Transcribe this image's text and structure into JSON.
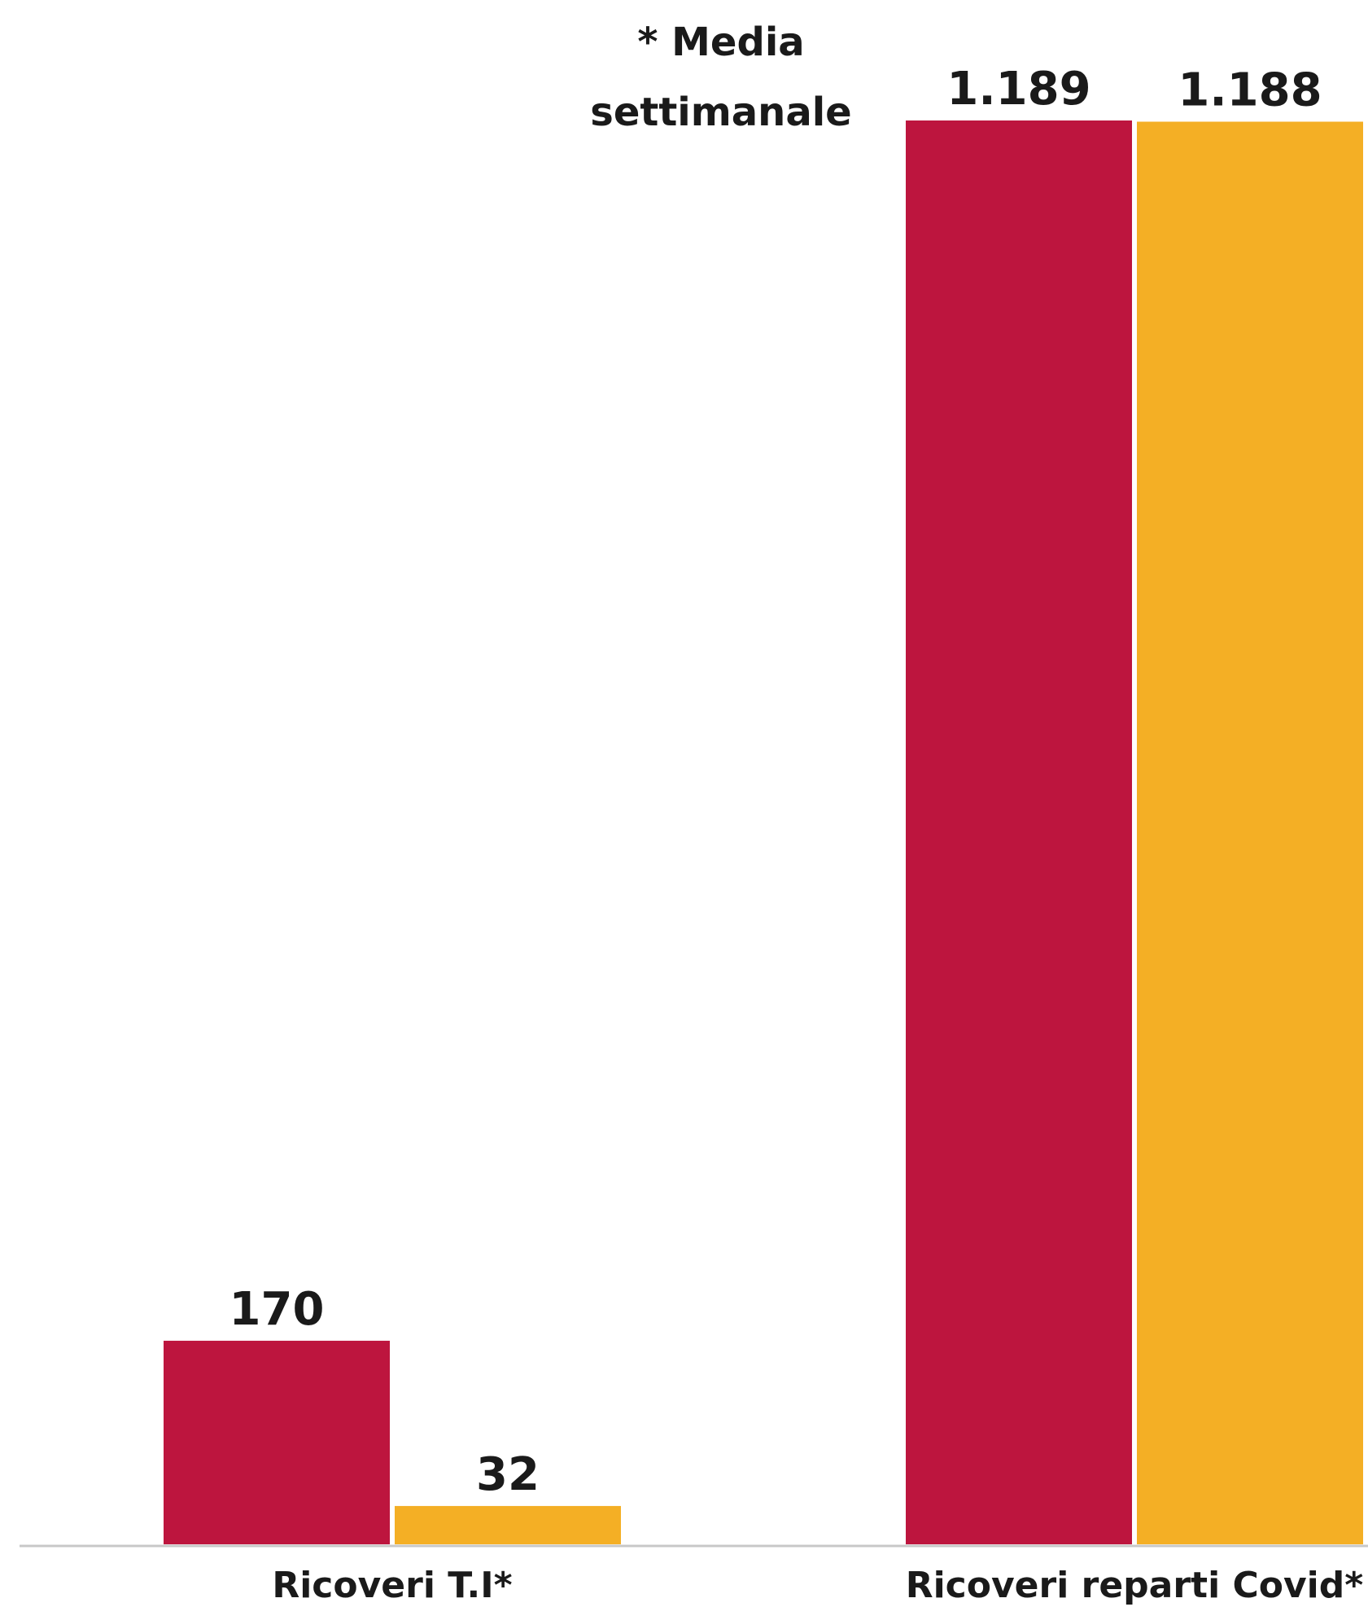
{
  "chart_data": {
    "type": "bar",
    "categories": [
      "Ricoveri T.I*",
      "Ricoveri reparti Covid*"
    ],
    "series": [
      {
        "color": "#bd153e",
        "values": [
          170,
          1189
        ],
        "value_labels": [
          "170",
          "1.189"
        ]
      },
      {
        "color": "#f4af25",
        "values": [
          32,
          1188
        ],
        "value_labels": [
          "32",
          "1.188"
        ]
      }
    ],
    "ylim": [
      0,
      1189
    ],
    "grid": false,
    "annotation": "* Media settimanale",
    "annotation_lines": [
      "* Media",
      "settimanale"
    ],
    "axis_color": "#c8c8c8"
  }
}
